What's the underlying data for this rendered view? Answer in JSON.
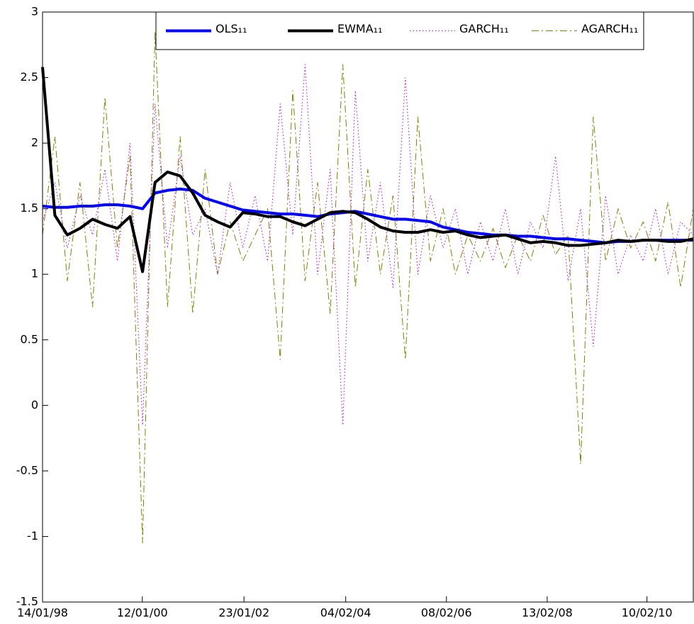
{
  "chart_data": {
    "type": "line",
    "x": [
      "14/01/98",
      "14/04/98",
      "14/07/98",
      "14/10/98",
      "14/01/99",
      "14/04/99",
      "14/07/99",
      "14/10/99",
      "14/01/00",
      "14/04/00",
      "14/07/00",
      "14/10/00",
      "14/01/01",
      "14/04/01",
      "14/07/01",
      "14/10/01",
      "14/01/02",
      "14/04/02",
      "14/07/02",
      "14/10/02",
      "14/01/03",
      "14/04/03",
      "14/07/03",
      "14/10/03",
      "14/01/04",
      "14/04/04",
      "14/07/04",
      "14/10/04",
      "14/01/05",
      "14/04/05",
      "14/07/05",
      "14/10/05",
      "14/01/06",
      "14/04/06",
      "14/07/06",
      "14/10/06",
      "14/01/07",
      "14/04/07",
      "14/07/07",
      "14/10/07",
      "14/01/08",
      "14/04/08",
      "14/07/08",
      "14/10/08",
      "14/01/09",
      "14/04/09",
      "14/07/09",
      "14/10/09",
      "14/01/10",
      "14/04/10",
      "14/07/10",
      "14/10/10",
      "14/01/11"
    ],
    "series": [
      {
        "name": "OLS₁₁",
        "color": "#0000ff",
        "style": "solid",
        "linewidth": 4,
        "values": [
          1.52,
          1.51,
          1.51,
          1.52,
          1.52,
          1.53,
          1.53,
          1.52,
          1.5,
          1.62,
          1.64,
          1.65,
          1.64,
          1.58,
          1.55,
          1.52,
          1.49,
          1.48,
          1.47,
          1.46,
          1.46,
          1.45,
          1.44,
          1.46,
          1.47,
          1.48,
          1.46,
          1.44,
          1.42,
          1.42,
          1.41,
          1.4,
          1.36,
          1.34,
          1.32,
          1.31,
          1.3,
          1.3,
          1.29,
          1.29,
          1.28,
          1.27,
          1.27,
          1.26,
          1.25,
          1.24,
          1.25,
          1.25,
          1.26,
          1.26,
          1.26,
          1.26,
          1.26
        ]
      },
      {
        "name": "EWMA₁₁",
        "color": "#000000",
        "style": "solid",
        "linewidth": 4,
        "values": [
          2.58,
          1.45,
          1.3,
          1.35,
          1.42,
          1.38,
          1.35,
          1.44,
          1.02,
          1.7,
          1.78,
          1.75,
          1.62,
          1.45,
          1.4,
          1.36,
          1.47,
          1.46,
          1.44,
          1.44,
          1.4,
          1.37,
          1.42,
          1.47,
          1.48,
          1.47,
          1.42,
          1.36,
          1.33,
          1.32,
          1.32,
          1.34,
          1.32,
          1.33,
          1.3,
          1.28,
          1.29,
          1.3,
          1.27,
          1.24,
          1.25,
          1.24,
          1.22,
          1.22,
          1.23,
          1.24,
          1.26,
          1.25,
          1.26,
          1.26,
          1.25,
          1.25,
          1.27
        ]
      },
      {
        "name": "GARCH₁₁",
        "color": "#bf00bf",
        "style": "dotted",
        "linewidth": 1,
        "values": [
          1.4,
          1.7,
          1.2,
          1.6,
          1.3,
          1.8,
          1.1,
          2.0,
          -0.15,
          2.3,
          1.2,
          1.9,
          1.3,
          1.5,
          1.0,
          1.7,
          1.2,
          1.6,
          1.1,
          2.3,
          1.3,
          2.6,
          1.0,
          1.8,
          -0.15,
          2.4,
          1.1,
          1.7,
          0.9,
          2.5,
          1.0,
          1.6,
          1.2,
          1.5,
          1.0,
          1.4,
          1.1,
          1.5,
          1.0,
          1.4,
          1.2,
          1.9,
          0.95,
          1.5,
          0.45,
          1.6,
          1.0,
          1.3,
          1.1,
          1.5,
          1.0,
          1.4,
          1.3
        ]
      },
      {
        "name": "AGARCH₁₁",
        "color": "#808000",
        "style": "dashdot",
        "linewidth": 1,
        "values": [
          1.3,
          2.05,
          0.95,
          1.7,
          0.75,
          2.35,
          1.2,
          1.9,
          -1.05,
          2.85,
          0.75,
          2.05,
          0.7,
          1.8,
          1.0,
          1.4,
          1.1,
          1.3,
          1.5,
          0.35,
          2.4,
          0.95,
          1.7,
          0.7,
          2.6,
          0.9,
          1.8,
          1.0,
          1.6,
          0.35,
          2.2,
          1.1,
          1.5,
          1.0,
          1.3,
          1.1,
          1.35,
          1.05,
          1.3,
          1.1,
          1.45,
          1.15,
          1.3,
          -0.45,
          2.2,
          1.1,
          1.5,
          1.2,
          1.4,
          1.1,
          1.55,
          0.9,
          1.5
        ]
      }
    ],
    "xlim": [
      "14/01/98",
      "14/01/11"
    ],
    "xticks": [
      "14/01/98",
      "12/01/00",
      "23/01/02",
      "04/02/04",
      "08/02/06",
      "13/02/08",
      "10/02/10"
    ],
    "ylim": [
      -1.5,
      3
    ],
    "yticks": [
      -1.5,
      -1,
      -0.5,
      0,
      0.5,
      1,
      1.5,
      2,
      2.5,
      3
    ],
    "legend": "top-right"
  }
}
